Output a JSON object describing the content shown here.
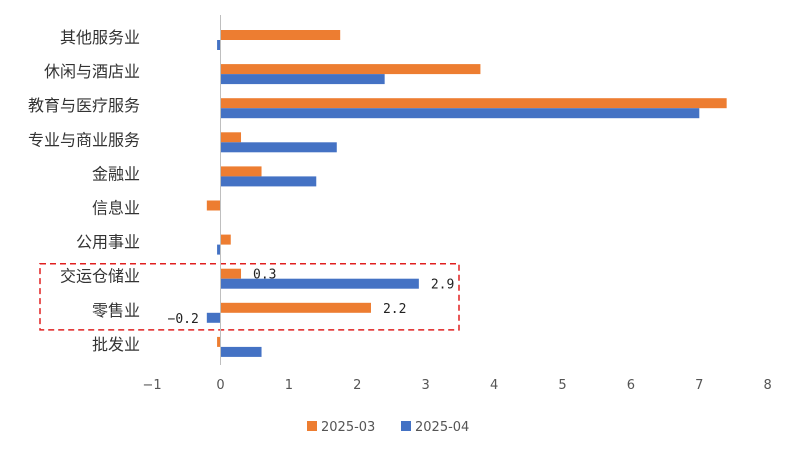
{
  "chart_data": {
    "type": "bar",
    "orientation": "horizontal",
    "categories": [
      "其他服务业",
      "休闲与酒店业",
      "教育与医疗服务",
      "专业与商业服务",
      "金融业",
      "信息业",
      "公用事业",
      "交运仓储业",
      "零售业",
      "批发业"
    ],
    "series": [
      {
        "name": "2025-03",
        "color": "#ED7D31",
        "values": [
          1.75,
          3.8,
          7.4,
          0.3,
          0.6,
          -0.2,
          0.15,
          0.3,
          2.2,
          -0.05
        ]
      },
      {
        "name": "2025-04",
        "color": "#4472C4",
        "values": [
          -0.05,
          2.4,
          7.0,
          1.7,
          1.4,
          0.0,
          -0.05,
          2.9,
          -0.2,
          0.6
        ]
      }
    ],
    "xlim": [
      -1,
      8
    ],
    "xticks": [
      -1,
      0,
      1,
      2,
      3,
      4,
      5,
      6,
      7,
      8
    ],
    "xtick_labels": [
      "−1",
      "0",
      "1",
      "2",
      "3",
      "4",
      "5",
      "6",
      "7",
      "8"
    ],
    "data_labels": [
      {
        "category": "交运仓储业",
        "series": "2025-03",
        "text": "0.3"
      },
      {
        "category": "交运仓储业",
        "series": "2025-04",
        "text": "2.9"
      },
      {
        "category": "零售业",
        "series": "2025-03",
        "text": "2.2"
      },
      {
        "category": "零售业",
        "series": "2025-04",
        "text": "−0.2"
      }
    ],
    "highlight": {
      "categories": [
        "交运仓储业",
        "零售业"
      ],
      "style": "red dashed box"
    },
    "legend_position": "bottom",
    "grid": false,
    "title": "",
    "xlabel": "",
    "ylabel": ""
  }
}
